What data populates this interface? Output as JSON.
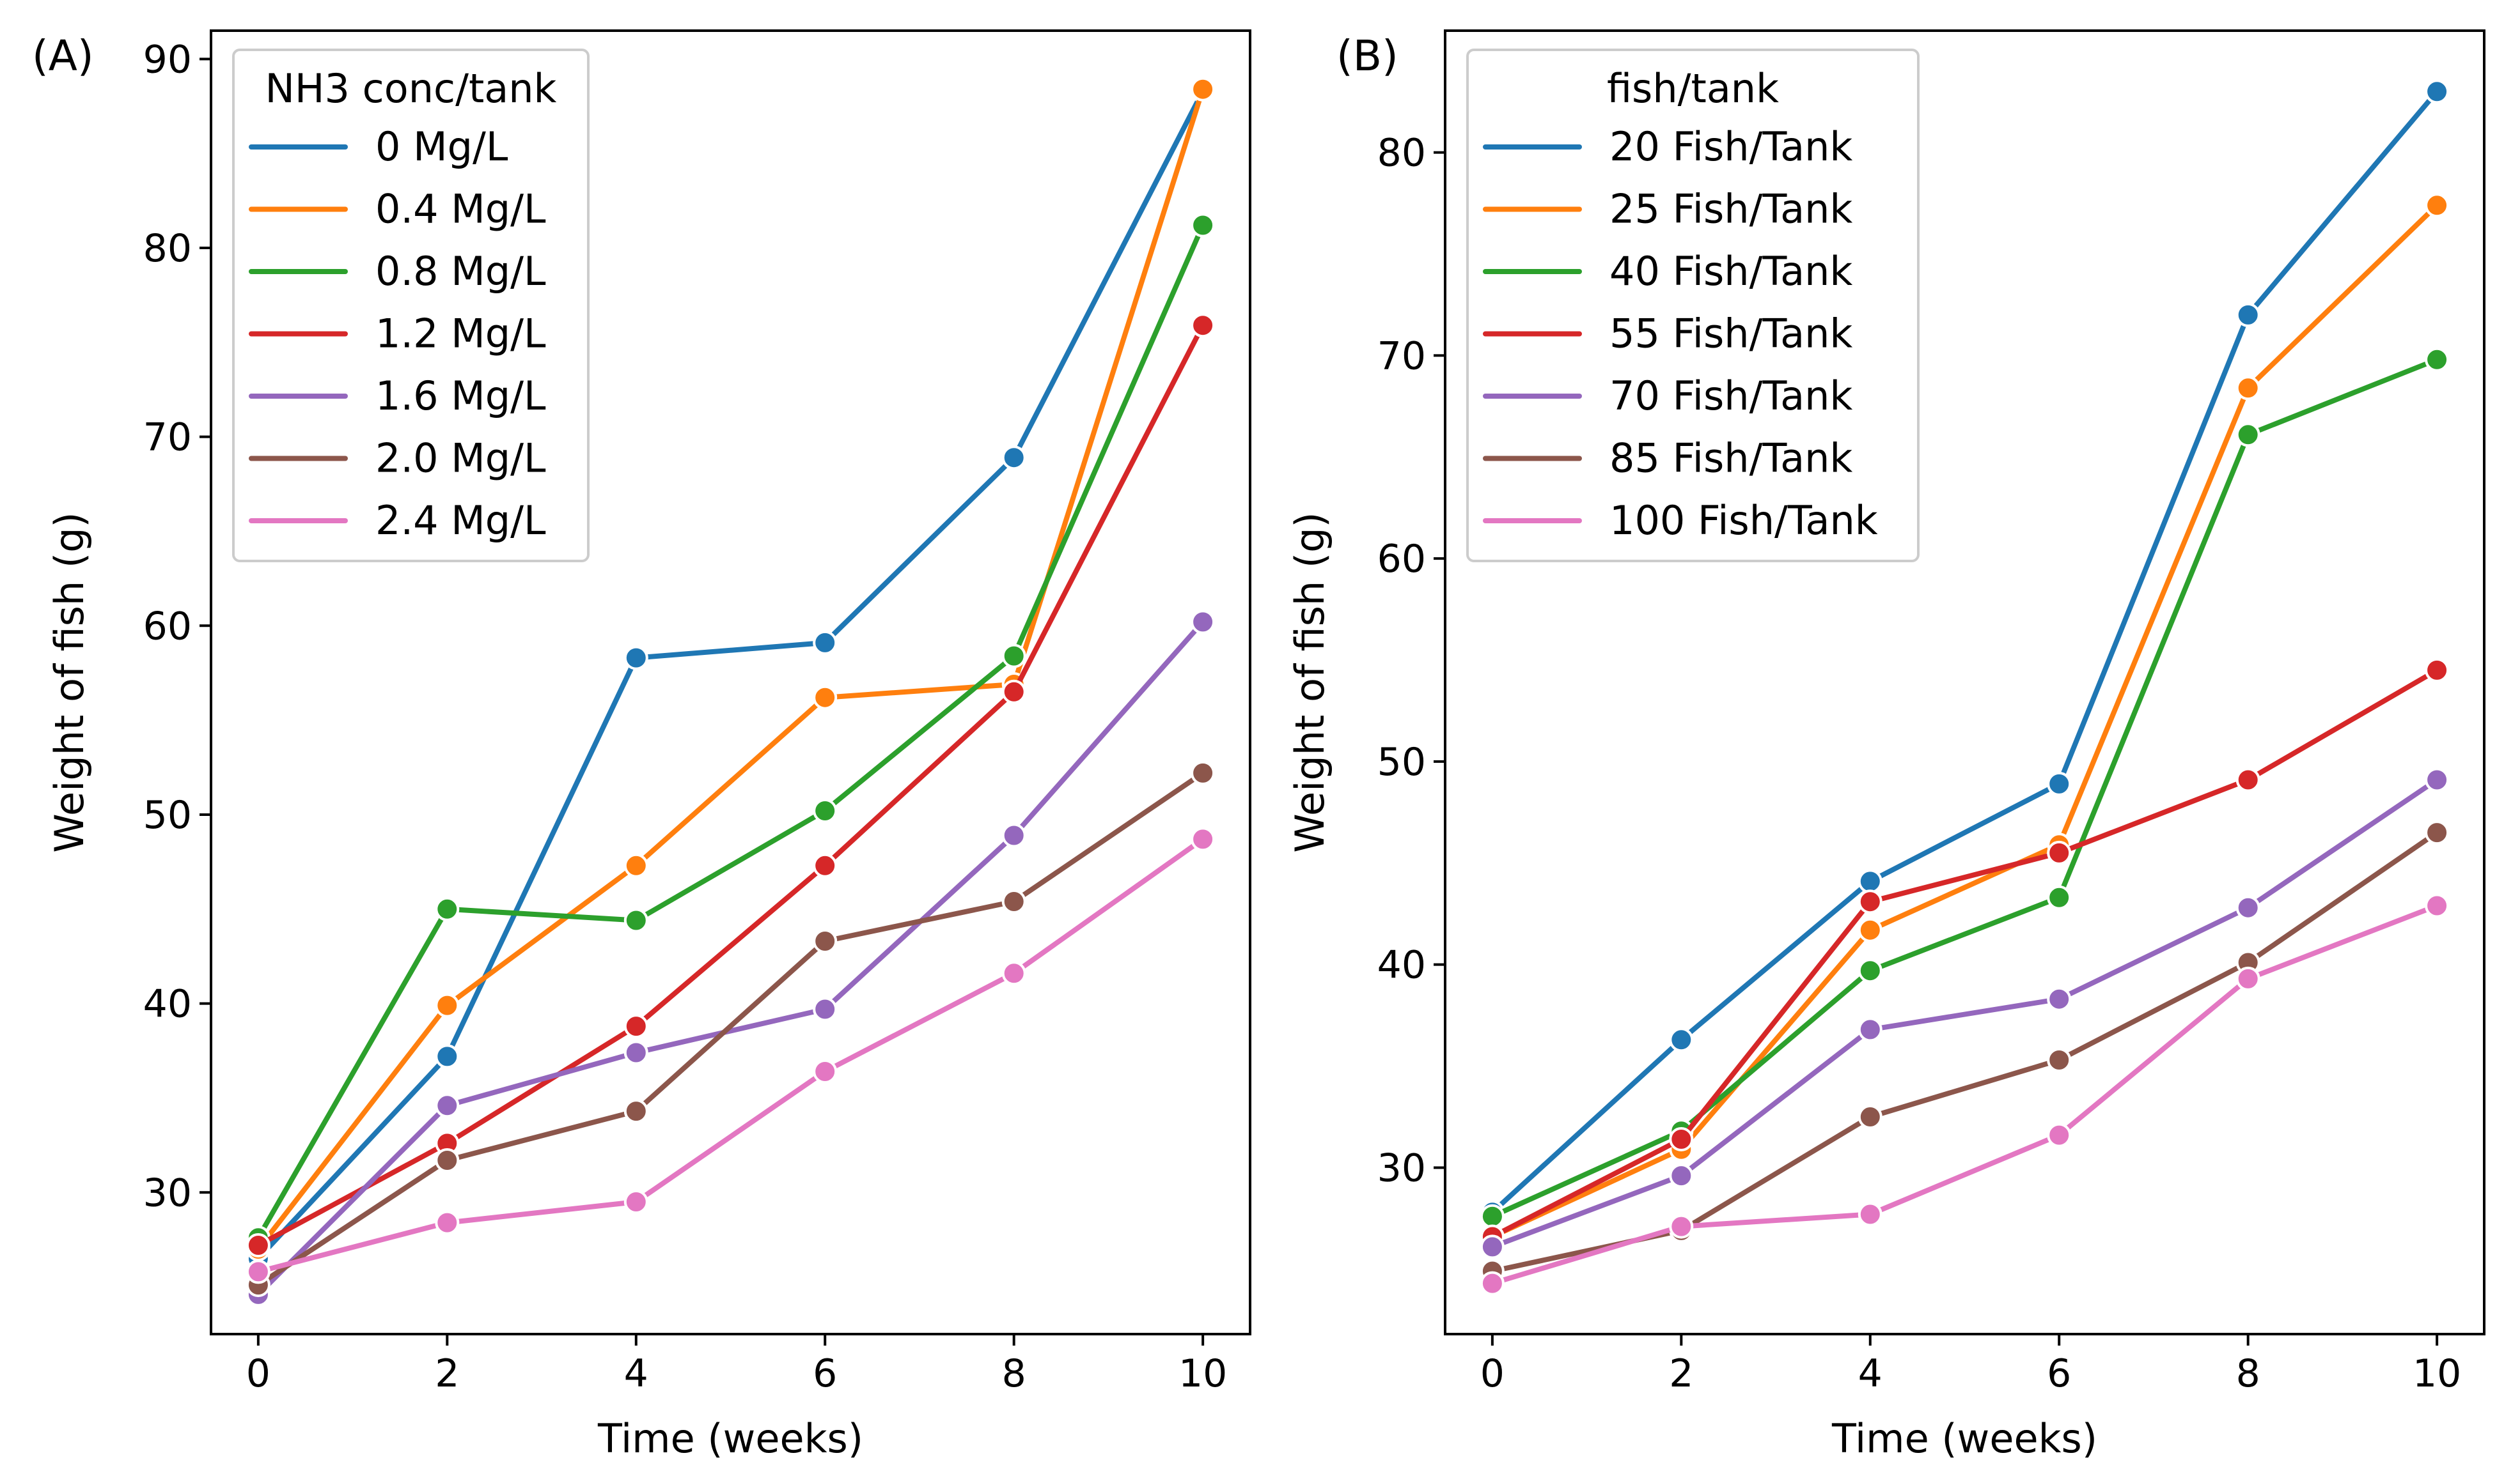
{
  "chart_data": [
    {
      "type": "line",
      "panel_label": "(A)",
      "xlabel": "Time (weeks)",
      "ylabel": "Weight of fish (g)",
      "x": [
        0,
        2,
        4,
        6,
        8,
        10
      ],
      "xticks": [
        0,
        2,
        4,
        6,
        8,
        10
      ],
      "xlim": [
        -0.5,
        10.5
      ],
      "yticks": [
        30,
        40,
        50,
        60,
        70,
        80,
        90
      ],
      "ylim": [
        22.5,
        91.5
      ],
      "grid": false,
      "legend": {
        "title": "NH3 conc/tank",
        "placement": "top-left"
      },
      "series": [
        {
          "name": "0 Mg/L",
          "color": "#1f77b4",
          "values": [
            26.5,
            37.2,
            58.3,
            59.1,
            68.9,
            88.3
          ]
        },
        {
          "name": "0.4 Mg/L",
          "color": "#ff7f0e",
          "values": [
            27.0,
            39.9,
            47.3,
            56.2,
            56.9,
            88.4
          ]
        },
        {
          "name": "0.8 Mg/L",
          "color": "#2ca02c",
          "values": [
            27.6,
            45.0,
            44.4,
            50.2,
            58.4,
            81.2
          ]
        },
        {
          "name": "1.2 Mg/L",
          "color": "#d62728",
          "values": [
            27.2,
            32.6,
            38.8,
            47.3,
            56.5,
            75.9
          ]
        },
        {
          "name": "1.6 Mg/L",
          "color": "#9467bd",
          "values": [
            24.6,
            34.6,
            37.4,
            39.7,
            48.9,
            60.2
          ]
        },
        {
          "name": "2.0 Mg/L",
          "color": "#8c564b",
          "values": [
            25.1,
            31.7,
            34.3,
            43.3,
            45.4,
            52.2
          ]
        },
        {
          "name": "2.4 Mg/L",
          "color": "#e377c2",
          "values": [
            25.8,
            28.4,
            29.5,
            36.4,
            41.6,
            48.7
          ]
        }
      ]
    },
    {
      "type": "line",
      "panel_label": "(B)",
      "xlabel": "Time (weeks)",
      "ylabel": "Weight of fish (g)",
      "x": [
        0,
        2,
        4,
        6,
        8,
        10
      ],
      "xticks": [
        0,
        2,
        4,
        6,
        8,
        10
      ],
      "xlim": [
        -0.5,
        10.5
      ],
      "yticks": [
        30,
        40,
        50,
        60,
        70,
        80
      ],
      "ylim": [
        21.8,
        86.0
      ],
      "grid": false,
      "legend": {
        "title": "fish/tank",
        "placement": "top-left"
      },
      "series": [
        {
          "name": "20 Fish/Tank",
          "color": "#1f77b4",
          "values": [
            27.8,
            36.3,
            44.1,
            48.9,
            72.0,
            83.0
          ]
        },
        {
          "name": "25 Fish/Tank",
          "color": "#ff7f0e",
          "values": [
            26.6,
            30.9,
            41.7,
            45.9,
            68.4,
            77.4
          ]
        },
        {
          "name": "40 Fish/Tank",
          "color": "#2ca02c",
          "values": [
            27.6,
            31.8,
            39.7,
            43.3,
            66.1,
            69.8
          ]
        },
        {
          "name": "55 Fish/Tank",
          "color": "#d62728",
          "values": [
            26.6,
            31.4,
            43.1,
            45.5,
            49.1,
            54.5
          ]
        },
        {
          "name": "70 Fish/Tank",
          "color": "#9467bd",
          "values": [
            26.1,
            29.6,
            36.8,
            38.3,
            42.8,
            49.1
          ]
        },
        {
          "name": "85 Fish/Tank",
          "color": "#8c564b",
          "values": [
            24.9,
            26.9,
            32.5,
            35.3,
            40.1,
            46.5
          ]
        },
        {
          "name": "100 Fish/Tank",
          "color": "#e377c2",
          "values": [
            24.3,
            27.1,
            27.7,
            31.6,
            39.3,
            42.9
          ]
        }
      ]
    }
  ]
}
